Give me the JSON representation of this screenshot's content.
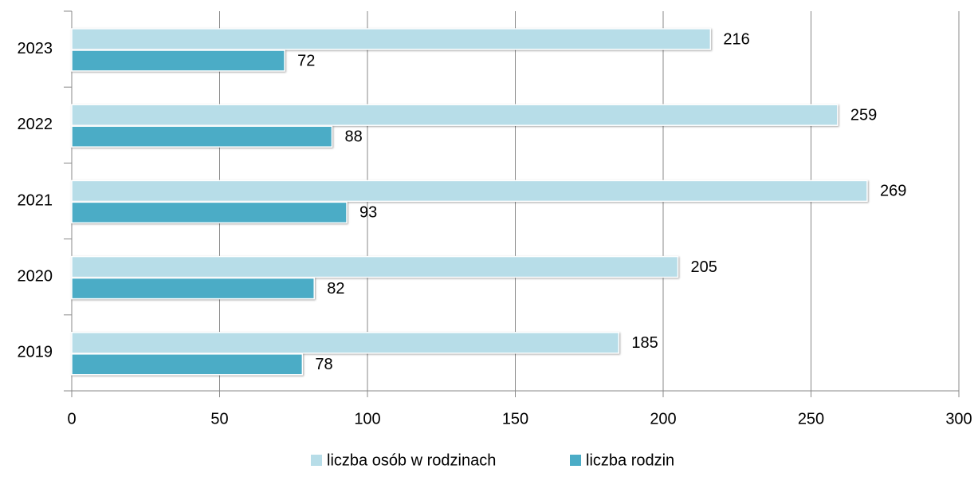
{
  "chart_data": {
    "type": "hbar",
    "categories": [
      "2023",
      "2022",
      "2021",
      "2020",
      "2019"
    ],
    "series": [
      {
        "name": "liczba osób w rodzinach",
        "color": "#b7dde8",
        "values": [
          216,
          259,
          269,
          205,
          185
        ]
      },
      {
        "name": "liczba rodzin",
        "color": "#4bacc6",
        "values": [
          72,
          88,
          93,
          82,
          78
        ]
      }
    ],
    "xlim": [
      0,
      300
    ],
    "xticks": [
      0,
      50,
      100,
      150,
      200,
      250,
      300
    ],
    "grid": true,
    "legend": "bottom"
  }
}
